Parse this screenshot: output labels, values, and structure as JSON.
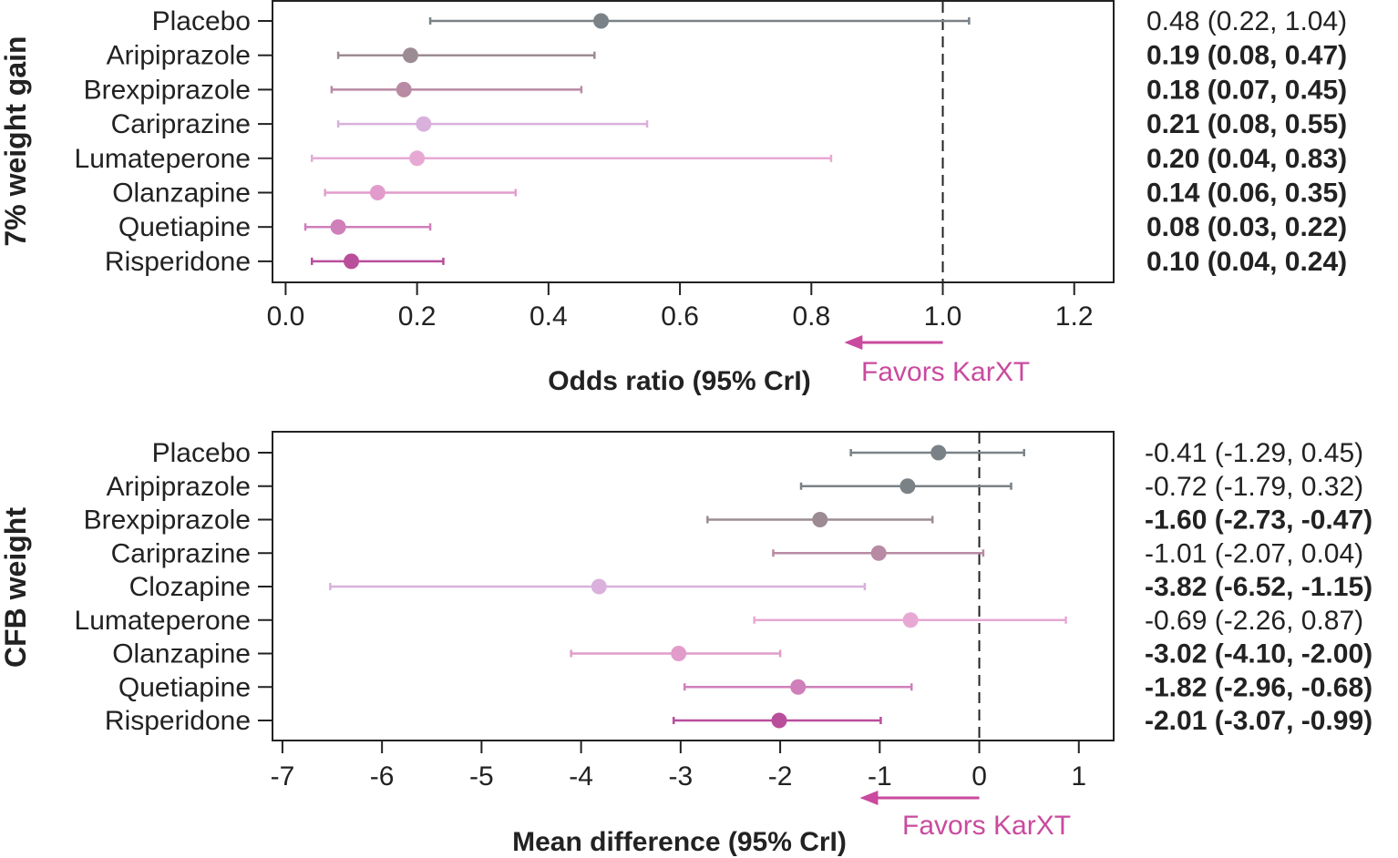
{
  "chart_data": [
    {
      "type": "forest",
      "title": "",
      "ylabel": "7% weight gain",
      "xlabel": "Odds ratio (95% CrI)",
      "xlim": [
        -0.02,
        1.26
      ],
      "xticks": [
        "0.0",
        "0.2",
        "0.4",
        "0.6",
        "0.8",
        "1.0",
        "1.2"
      ],
      "xtick_values": [
        0.0,
        0.2,
        0.4,
        0.6,
        0.8,
        1.0,
        1.2
      ],
      "reference_line": 1.0,
      "reference_style": "dashed",
      "favors_label": "Favors KarXT",
      "favors_arrow_from": 1.0,
      "favors_arrow_to": 0.85,
      "rows": [
        {
          "label": "Placebo",
          "estimate": 0.48,
          "lower": 0.22,
          "upper": 1.04,
          "text": "0.48 (0.22, 1.04)",
          "bold": false,
          "color": "#7a8287"
        },
        {
          "label": "Aripiprazole",
          "estimate": 0.19,
          "lower": 0.08,
          "upper": 0.47,
          "text": "0.19 (0.08, 0.47)",
          "bold": true,
          "color": "#9c8b92"
        },
        {
          "label": "Brexpiprazole",
          "estimate": 0.18,
          "lower": 0.07,
          "upper": 0.45,
          "text": "0.18 (0.07, 0.45)",
          "bold": true,
          "color": "#b98aa3"
        },
        {
          "label": "Cariprazine",
          "estimate": 0.21,
          "lower": 0.08,
          "upper": 0.55,
          "text": "0.21 (0.08, 0.55)",
          "bold": true,
          "color": "#d9b1dc"
        },
        {
          "label": "Lumateperone",
          "estimate": 0.2,
          "lower": 0.04,
          "upper": 0.83,
          "text": "0.20 (0.04, 0.83)",
          "bold": true,
          "color": "#e7a9d4"
        },
        {
          "label": "Olanzapine",
          "estimate": 0.14,
          "lower": 0.06,
          "upper": 0.35,
          "text": "0.14 (0.06, 0.35)",
          "bold": true,
          "color": "#e29ccb"
        },
        {
          "label": "Quetiapine",
          "estimate": 0.08,
          "lower": 0.03,
          "upper": 0.22,
          "text": "0.08 (0.03, 0.22)",
          "bold": true,
          "color": "#cf7fba"
        },
        {
          "label": "Risperidone",
          "estimate": 0.1,
          "lower": 0.04,
          "upper": 0.24,
          "text": "0.10 (0.04, 0.24)",
          "bold": true,
          "color": "#b94e9b"
        }
      ]
    },
    {
      "type": "forest",
      "title": "",
      "ylabel": "CFB weight",
      "xlabel": "Mean difference (95% CrI)",
      "xlim": [
        -7.1,
        1.35
      ],
      "xticks": [
        "-7",
        "-6",
        "-5",
        "-4",
        "-3",
        "-2",
        "-1",
        "0",
        "1"
      ],
      "xtick_values": [
        -7,
        -6,
        -5,
        -4,
        -3,
        -2,
        -1,
        0,
        1
      ],
      "reference_line": 0,
      "reference_style": "dashed",
      "favors_label": "Favors KarXT",
      "favors_arrow_from": 0,
      "favors_arrow_to": -1.2,
      "rows": [
        {
          "label": "Placebo",
          "estimate": -0.41,
          "lower": -1.29,
          "upper": 0.45,
          "text": "-0.41 (-1.29, 0.45)",
          "bold": false,
          "color": "#7a8287"
        },
        {
          "label": "Aripiprazole",
          "estimate": -0.72,
          "lower": -1.79,
          "upper": 0.32,
          "text": "-0.72 (-1.79, 0.32)",
          "bold": false,
          "color": "#7a8287"
        },
        {
          "label": "Brexpiprazole",
          "estimate": -1.6,
          "lower": -2.73,
          "upper": -0.47,
          "text": "-1.60 (-2.73, -0.47)",
          "bold": true,
          "color": "#9c8b92"
        },
        {
          "label": "Cariprazine",
          "estimate": -1.01,
          "lower": -2.07,
          "upper": 0.04,
          "text": "-1.01 (-2.07, 0.04)",
          "bold": false,
          "color": "#b98aa3"
        },
        {
          "label": "Clozapine",
          "estimate": -3.82,
          "lower": -6.52,
          "upper": -1.15,
          "text": "-3.82 (-6.52, -1.15)",
          "bold": true,
          "color": "#d9b1dc"
        },
        {
          "label": "Lumateperone",
          "estimate": -0.69,
          "lower": -2.26,
          "upper": 0.87,
          "text": "-0.69 (-2.26, 0.87)",
          "bold": false,
          "color": "#e7a9d4"
        },
        {
          "label": "Olanzapine",
          "estimate": -3.02,
          "lower": -4.1,
          "upper": -2.0,
          "text": "-3.02 (-4.10, -2.00)",
          "bold": true,
          "color": "#e29ccb"
        },
        {
          "label": "Quetiapine",
          "estimate": -1.82,
          "lower": -2.96,
          "upper": -0.68,
          "text": "-1.82 (-2.96, -0.68)",
          "bold": true,
          "color": "#cf7fba"
        },
        {
          "label": "Risperidone",
          "estimate": -2.01,
          "lower": -3.07,
          "upper": -0.99,
          "text": "-2.01 (-3.07, -0.99)",
          "bold": true,
          "color": "#b94e9b"
        }
      ]
    }
  ]
}
